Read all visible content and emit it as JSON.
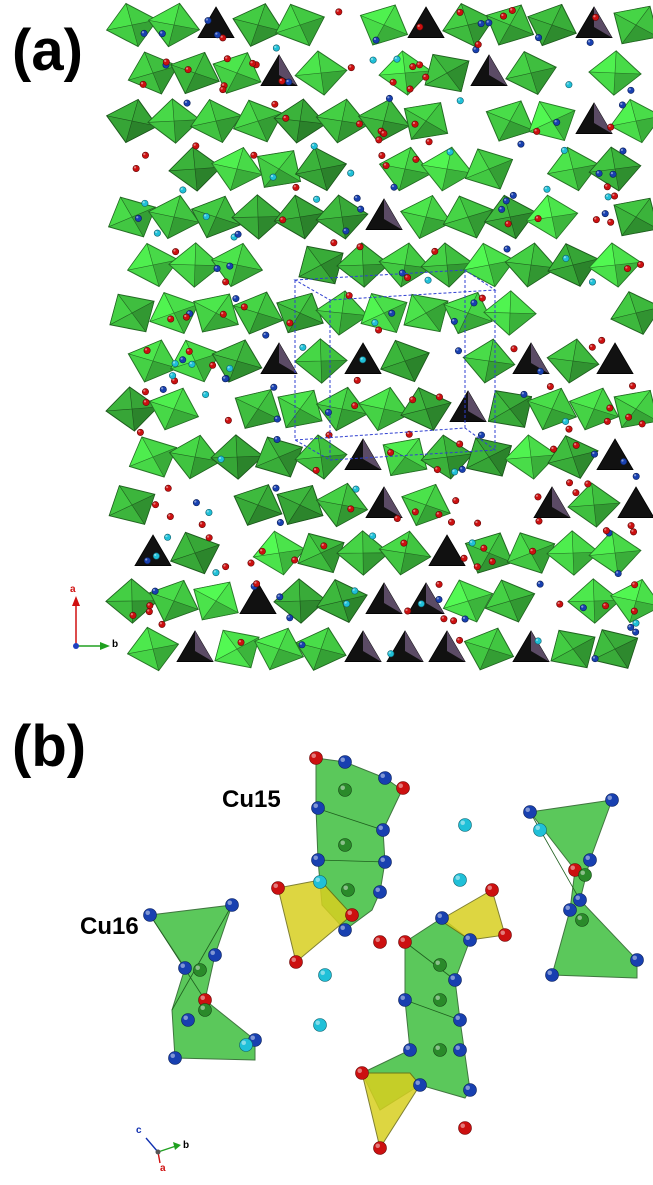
{
  "panel_a": {
    "label": "(a)",
    "axes": {
      "a_label": "a",
      "b_label": "b"
    }
  },
  "panel_b": {
    "label": "(b)",
    "site_labels": {
      "cu15": "Cu15",
      "cu16": "Cu16"
    },
    "axes": {
      "c_label": "c",
      "b_label": "b",
      "a_label": "a"
    }
  },
  "colors": {
    "polyhedron_green": "#3fbf3f",
    "polyhedron_dark": "#111111",
    "polyhedron_purple": "#6e5a7a",
    "polyhedron_yellow": "#d8d020",
    "oxygen_red": "#cc1010",
    "nitrogen_blue": "#1840b0",
    "cyan_atom": "#20c0d8",
    "cell_outline": "#3040d0"
  }
}
